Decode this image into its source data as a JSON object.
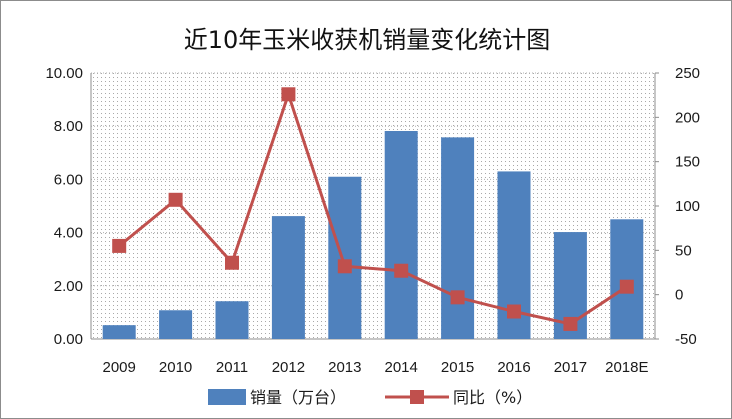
{
  "chart_data": {
    "type": "bar+line",
    "title": "近10年玉米收获机销量变化统计图",
    "categories": [
      "2009",
      "2010",
      "2011",
      "2012",
      "2013",
      "2014",
      "2015",
      "2016",
      "2017",
      "2018E"
    ],
    "series": [
      {
        "name": "销量（万台）",
        "type": "bar",
        "axis": "left",
        "color": "#4f81bd",
        "values": [
          0.52,
          1.08,
          1.42,
          4.62,
          6.1,
          7.82,
          7.58,
          6.3,
          4.02,
          4.5
        ]
      },
      {
        "name": "同比（%）",
        "type": "line",
        "axis": "right",
        "color": "#c0504d",
        "values": [
          55,
          107,
          36,
          226,
          32,
          27,
          -3,
          -19,
          -33,
          9
        ]
      }
    ],
    "y_left": {
      "range": [
        0,
        10
      ],
      "ticks": [
        "0.00",
        "2.00",
        "4.00",
        "6.00",
        "8.00",
        "10.00"
      ]
    },
    "y_right": {
      "range": [
        -50,
        250
      ],
      "ticks": [
        "-50",
        "0",
        "50",
        "100",
        "150",
        "200",
        "250"
      ]
    },
    "gridlines": true,
    "plot_background": "dotted",
    "legend_position": "bottom"
  }
}
